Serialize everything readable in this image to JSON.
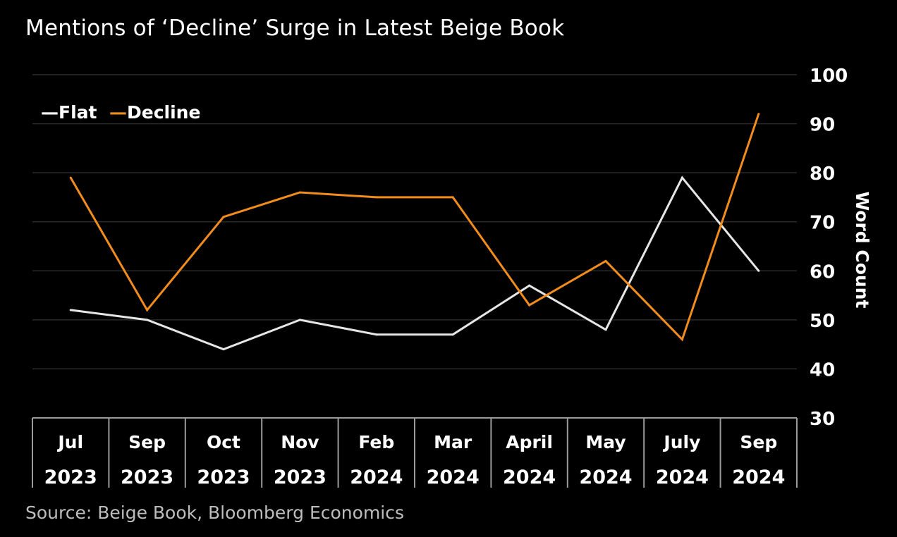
{
  "chart_data": {
    "type": "line",
    "title": "Mentions of ‘Decline’ Surge in Latest Beige Book",
    "source": "Source: Beige Book, Bloomberg Economics",
    "ylabel": "Word Count",
    "xlabel": "",
    "ylim": [
      30,
      100
    ],
    "yticks": [
      "30",
      "40",
      "50",
      "60",
      "70",
      "80",
      "90",
      "100"
    ],
    "y_axis_side": "right",
    "grid": true,
    "legend_position": "top-left",
    "categories": [
      {
        "month": "Jul",
        "year": "2023"
      },
      {
        "month": "Sep",
        "year": "2023"
      },
      {
        "month": "Oct",
        "year": "2023"
      },
      {
        "month": "Nov",
        "year": "2023"
      },
      {
        "month": "Feb",
        "year": "2024"
      },
      {
        "month": "Mar",
        "year": "2024"
      },
      {
        "month": "April",
        "year": "2024"
      },
      {
        "month": "May",
        "year": "2024"
      },
      {
        "month": "July",
        "year": "2024"
      },
      {
        "month": "Sep",
        "year": "2024"
      }
    ],
    "series": [
      {
        "name": "Flat",
        "legend_label": "—Flat",
        "color": "#e6e6e6",
        "values": [
          52,
          50,
          44,
          50,
          47,
          47,
          57,
          48,
          79,
          60
        ]
      },
      {
        "name": "Decline",
        "legend_label": "—Decline",
        "color": "#f28c1c",
        "values": [
          79,
          52,
          71,
          76,
          75,
          75,
          53,
          62,
          46,
          92
        ]
      }
    ],
    "colors": {
      "background": "#000000",
      "grid": "#2a2a2a",
      "category_divider": "#9a9a9a",
      "source_text": "#bdbdbd"
    }
  }
}
